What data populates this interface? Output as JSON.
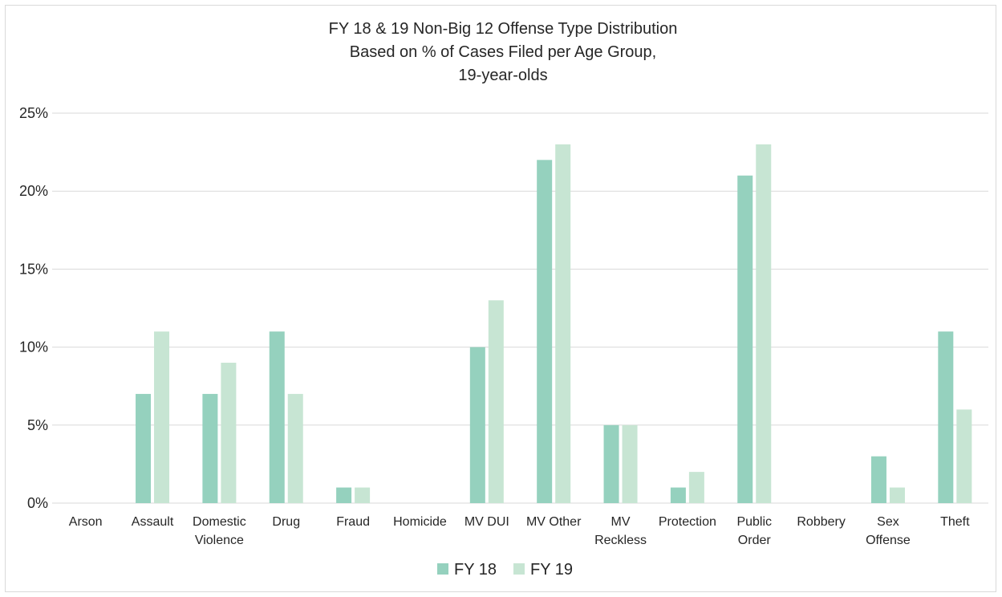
{
  "chart_data": {
    "type": "bar",
    "title": [
      "FY 18 & 19 Non-Big 12 Offense Type Distribution",
      "Based on % of Cases Filed per Age Group,",
      "19-year-olds"
    ],
    "xlabel": "",
    "ylabel": "",
    "ylim": [
      0,
      25
    ],
    "yticks": [
      0,
      5,
      10,
      15,
      20,
      25
    ],
    "ytick_labels": [
      "0%",
      "5%",
      "10%",
      "15%",
      "20%",
      "25%"
    ],
    "grid": true,
    "legend_position": "bottom",
    "categories": [
      [
        "Arson"
      ],
      [
        "Assault"
      ],
      [
        "Domestic",
        "Violence"
      ],
      [
        "Drug"
      ],
      [
        "Fraud"
      ],
      [
        "Homicide"
      ],
      [
        "MV DUI"
      ],
      [
        "MV Other"
      ],
      [
        "MV",
        "Reckless"
      ],
      [
        "Protection"
      ],
      [
        "Public",
        "Order"
      ],
      [
        "Robbery"
      ],
      [
        "Sex",
        "Offense"
      ],
      [
        "Theft"
      ]
    ],
    "series": [
      {
        "name": "FY 18",
        "color": "#95d1be",
        "values": [
          0,
          7,
          7,
          11,
          1,
          0,
          10,
          22,
          5,
          1,
          21,
          0,
          3,
          11
        ]
      },
      {
        "name": "FY 19",
        "color": "#c7e5d3",
        "values": [
          0,
          11,
          9,
          7,
          1,
          0,
          13,
          23,
          5,
          2,
          23,
          0,
          1,
          6
        ]
      }
    ]
  }
}
